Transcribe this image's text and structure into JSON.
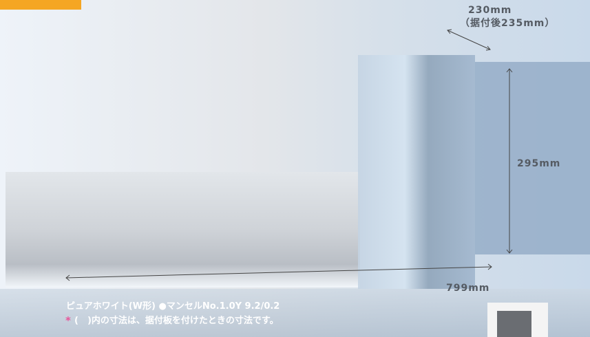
{
  "dimensions": {
    "depth": "230mm",
    "depth_installed": "（据付後235mm）",
    "height": "295mm",
    "width": "799mm"
  },
  "notes": {
    "color": "ピュアホワイト(W形)  ●マンセルNo.1.0Y 9.2/0.2",
    "asterisk": "*",
    "installed": "(　)内の寸法は、据付板を付けたときの寸法です。"
  }
}
